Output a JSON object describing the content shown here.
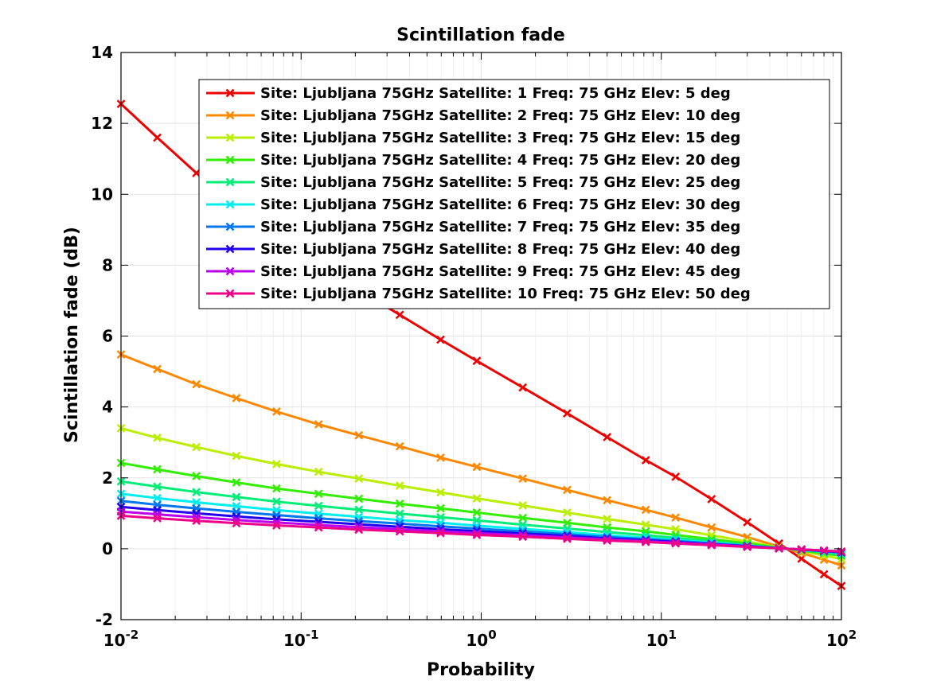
{
  "chart_data": {
    "type": "line",
    "title": "Scintillation fade",
    "xlabel": "Probability",
    "ylabel": "Scintillation fade (dB)",
    "x_scale": "log",
    "xlim": [
      0.01,
      100
    ],
    "ylim": [
      -2,
      14
    ],
    "grid": true,
    "legend_placement": "top-right",
    "x_tick_labels": [
      {
        "base": "10",
        "exp": "-2"
      },
      {
        "base": "10",
        "exp": "-1"
      },
      {
        "base": "10",
        "exp": "0"
      },
      {
        "base": "10",
        "exp": "1"
      },
      {
        "base": "10",
        "exp": "2"
      }
    ],
    "y_ticks": [
      -2,
      0,
      2,
      4,
      6,
      8,
      10,
      12,
      14
    ],
    "y_tick_labels": [
      "-2",
      "0",
      "2",
      "4",
      "6",
      "8",
      "10",
      "12",
      "14"
    ],
    "marker": "x",
    "x": [
      0.01,
      0.0159,
      0.0262,
      0.0437,
      0.0731,
      0.125,
      0.209,
      0.353,
      0.595,
      0.945,
      1.7,
      3.0,
      5.0,
      8.2,
      12.0,
      19.0,
      30.0,
      45.0,
      60.0,
      80.0,
      100.0
    ],
    "series": [
      {
        "name": "Site: Ljubljana 75GHz Satellite: 1 Freq: 75 GHz Elev: 5 deg",
        "color": "#ee0000",
        "values": [
          12.55,
          11.6,
          10.6,
          9.7,
          8.85,
          8.05,
          7.3,
          6.6,
          5.9,
          5.3,
          4.55,
          3.82,
          3.15,
          2.5,
          2.03,
          1.4,
          0.75,
          0.15,
          -0.28,
          -0.72,
          -1.05
        ]
      },
      {
        "name": "Site: Ljubljana 75GHz Satellite: 2 Freq: 75 GHz Elev: 10 deg",
        "color": "#ff8800",
        "values": [
          5.48,
          5.07,
          4.64,
          4.25,
          3.87,
          3.51,
          3.2,
          2.89,
          2.57,
          2.31,
          1.98,
          1.66,
          1.37,
          1.1,
          0.88,
          0.6,
          0.33,
          0.06,
          -0.12,
          -0.31,
          -0.47
        ]
      },
      {
        "name": "Site: Ljubljana 75GHz Satellite: 3 Freq: 75 GHz Elev: 15 deg",
        "color": "#bbee00",
        "values": [
          3.4,
          3.13,
          2.87,
          2.62,
          2.39,
          2.17,
          1.98,
          1.78,
          1.59,
          1.42,
          1.22,
          1.02,
          0.84,
          0.68,
          0.55,
          0.38,
          0.2,
          0.04,
          -0.07,
          -0.19,
          -0.29
        ]
      },
      {
        "name": "Site: Ljubljana 75GHz Satellite: 4 Freq: 75 GHz Elev: 20 deg",
        "color": "#33ee00",
        "values": [
          2.42,
          2.24,
          2.05,
          1.87,
          1.7,
          1.55,
          1.41,
          1.27,
          1.14,
          1.02,
          0.87,
          0.73,
          0.6,
          0.49,
          0.39,
          0.27,
          0.15,
          0.03,
          -0.05,
          -0.13,
          -0.2
        ]
      },
      {
        "name": "Site: Ljubljana 75GHz Satellite: 5 Freq: 75 GHz Elev: 25 deg",
        "color": "#00ee77",
        "values": [
          1.9,
          1.75,
          1.6,
          1.46,
          1.33,
          1.21,
          1.1,
          0.99,
          0.89,
          0.8,
          0.68,
          0.57,
          0.47,
          0.38,
          0.31,
          0.21,
          0.11,
          0.02,
          -0.04,
          -0.1,
          -0.16
        ]
      },
      {
        "name": "Site: Ljubljana 75GHz Satellite: 6 Freq: 75 GHz Elev: 30 deg",
        "color": "#00eeee",
        "values": [
          1.55,
          1.43,
          1.31,
          1.2,
          1.09,
          0.99,
          0.9,
          0.81,
          0.73,
          0.65,
          0.56,
          0.47,
          0.38,
          0.31,
          0.25,
          0.17,
          0.09,
          0.02,
          -0.03,
          -0.08,
          -0.13
        ]
      },
      {
        "name": "Site: Ljubljana 75GHz Satellite: 7 Freq: 75 GHz Elev: 35 deg",
        "color": "#0077ee",
        "values": [
          1.35,
          1.24,
          1.14,
          1.04,
          0.95,
          0.86,
          0.78,
          0.71,
          0.63,
          0.57,
          0.49,
          0.41,
          0.33,
          0.27,
          0.22,
          0.15,
          0.08,
          0.02,
          -0.03,
          -0.07,
          -0.11
        ]
      },
      {
        "name": "Site: Ljubljana 75GHz Satellite: 8 Freq: 75 GHz Elev: 40 deg",
        "color": "#2200ee",
        "values": [
          1.18,
          1.09,
          1.0,
          0.91,
          0.83,
          0.76,
          0.69,
          0.62,
          0.55,
          0.5,
          0.43,
          0.36,
          0.29,
          0.24,
          0.19,
          0.13,
          0.07,
          0.01,
          -0.02,
          -0.06,
          -0.1
        ]
      },
      {
        "name": "Site: Ljubljana 75GHz Satellite: 9 Freq: 75 GHz Elev: 45 deg",
        "color": "#bb00ee",
        "values": [
          1.05,
          0.97,
          0.89,
          0.81,
          0.74,
          0.67,
          0.61,
          0.55,
          0.49,
          0.44,
          0.38,
          0.32,
          0.26,
          0.21,
          0.17,
          0.12,
          0.06,
          0.01,
          -0.02,
          -0.05,
          -0.09
        ]
      },
      {
        "name": "Site: Ljubljana 75GHz Satellite: 10 Freq: 75 GHz Elev: 50 deg",
        "color": "#ee0088",
        "values": [
          0.93,
          0.86,
          0.79,
          0.72,
          0.66,
          0.6,
          0.54,
          0.49,
          0.44,
          0.39,
          0.34,
          0.28,
          0.23,
          0.19,
          0.15,
          0.1,
          0.05,
          0.01,
          -0.02,
          -0.05,
          -0.08
        ]
      }
    ]
  }
}
